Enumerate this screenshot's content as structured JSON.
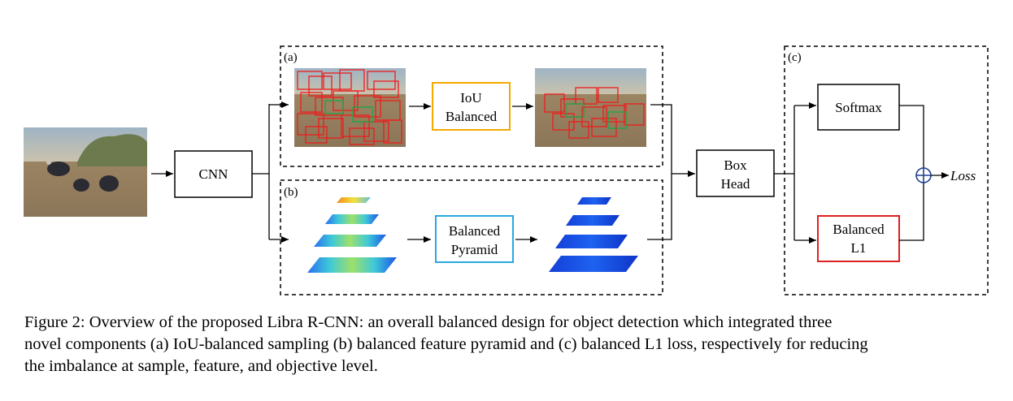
{
  "panels": {
    "a_label": "(a)",
    "b_label": "(b)",
    "c_label": "(c)"
  },
  "boxes": {
    "cnn": "CNN",
    "iou_line1": "IoU",
    "iou_line2": "Balanced",
    "pyramid_line1": "Balanced",
    "pyramid_line2": "Pyramid",
    "boxhead_line1": "Box",
    "boxhead_line2": "Head",
    "softmax": "Softmax",
    "l1_line1": "Balanced",
    "l1_line2": "L1",
    "loss": "Loss"
  },
  "colors": {
    "iou_border": "#f5a800",
    "pyramid_border": "#29a8e0",
    "l1_border": "#e02020",
    "sum_node": "#1f3f8f"
  },
  "caption": {
    "line1": "Figure 2: Overview of the proposed Libra R-CNN: an overall balanced design for object detection which integrated three",
    "line2": "novel components (a) IoU-balanced sampling (b) balanced feature pyramid and (c) balanced L1 loss, respectively for reducing",
    "line3": "the imbalance at sample, feature, and objective level."
  }
}
